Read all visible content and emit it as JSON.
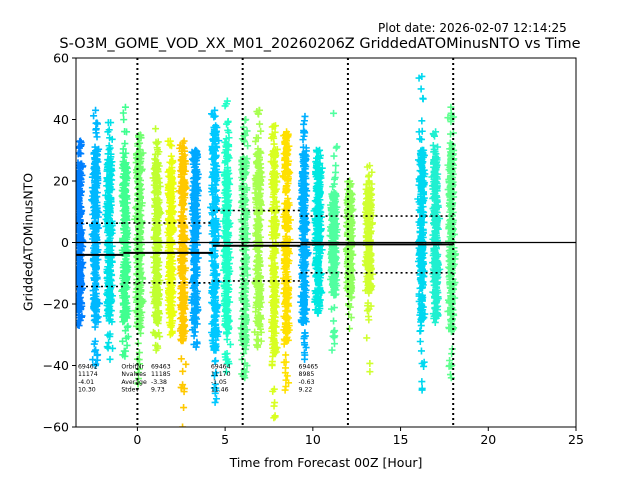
{
  "header": {
    "plot_date": "Plot date: 2026-02-07 12:14:25"
  },
  "chart_data": {
    "type": "scatter",
    "title": "S-O3M_GOME_VOD_XX_M01_20260206Z GriddedATOMinusNTO vs Time",
    "xlabel": "Time from Forecast 00Z [Hour]",
    "ylabel": "GriddedATOMinusNTO",
    "xlim": [
      -3.5,
      25
    ],
    "ylim": [
      -60,
      60
    ],
    "xticks": [
      0,
      5,
      10,
      15,
      20,
      25
    ],
    "yticks": [
      -60,
      -40,
      -20,
      0,
      20,
      40,
      60
    ],
    "grid": false,
    "marker": "+",
    "window_boundaries_hours": [
      0,
      6,
      12,
      18
    ],
    "zero_line": 0,
    "orbit_clusters": [
      {
        "t_center": -3.3,
        "y_low": -22,
        "y_high": 26,
        "y_min_outlier": -27,
        "y_max_outlier": 33,
        "color": "#0080ff"
      },
      {
        "t_center": -2.4,
        "y_low": -26,
        "y_high": 30,
        "y_min_outlier": -40,
        "y_max_outlier": 43,
        "color": "#00b8ff"
      },
      {
        "t_center": -1.6,
        "y_low": -24,
        "y_high": 28,
        "y_min_outlier": -38,
        "y_max_outlier": 39,
        "color": "#00e0e8"
      },
      {
        "t_center": -0.7,
        "y_low": -26,
        "y_high": 26,
        "y_min_outlier": -37,
        "y_max_outlier": 44,
        "color": "#40ff90"
      },
      {
        "t_center": 0.1,
        "y_low": -28,
        "y_high": 30,
        "y_min_outlier": -46,
        "y_max_outlier": 35,
        "color": "#70ff70"
      },
      {
        "t_center": 1.1,
        "y_low": -26,
        "y_high": 26,
        "y_min_outlier": -35,
        "y_max_outlier": 37,
        "color": "#c0ff30"
      },
      {
        "t_center": 1.9,
        "y_low": -24,
        "y_high": 24,
        "y_min_outlier": -30,
        "y_max_outlier": 33,
        "color": "#e8ff10"
      },
      {
        "t_center": 2.6,
        "y_low": -32,
        "y_high": 28,
        "y_min_outlier": -60,
        "y_max_outlier": 33,
        "color": "#ffc800"
      },
      {
        "t_center": 3.3,
        "y_low": -26,
        "y_high": 28,
        "y_min_outlier": -34,
        "y_max_outlier": 30,
        "color": "#00a8ff"
      },
      {
        "t_center": 4.4,
        "y_low": -36,
        "y_high": 36,
        "y_min_outlier": -52,
        "y_max_outlier": 43,
        "color": "#00c8ff"
      },
      {
        "t_center": 5.1,
        "y_low": -30,
        "y_high": 32,
        "y_min_outlier": -42,
        "y_max_outlier": 46,
        "color": "#20ffc8"
      },
      {
        "t_center": 6.1,
        "y_low": -34,
        "y_high": 28,
        "y_min_outlier": -44,
        "y_max_outlier": 40,
        "color": "#60ff90"
      },
      {
        "t_center": 6.9,
        "y_low": -28,
        "y_high": 30,
        "y_min_outlier": -34,
        "y_max_outlier": 43,
        "color": "#a8ff50"
      },
      {
        "t_center": 7.8,
        "y_low": -36,
        "y_high": 30,
        "y_min_outlier": -57,
        "y_max_outlier": 38,
        "color": "#d8ff20"
      },
      {
        "t_center": 8.5,
        "y_low": -32,
        "y_high": 34,
        "y_min_outlier": -48,
        "y_max_outlier": 36,
        "color": "#ffe000"
      },
      {
        "t_center": 9.5,
        "y_low": -26,
        "y_high": 30,
        "y_min_outlier": -38,
        "y_max_outlier": 41,
        "color": "#00b0ff"
      },
      {
        "t_center": 10.3,
        "y_low": -20,
        "y_high": 26,
        "y_min_outlier": -23,
        "y_max_outlier": 30,
        "color": "#00e8e0"
      },
      {
        "t_center": 11.2,
        "y_low": -18,
        "y_high": 16,
        "y_min_outlier": -35,
        "y_max_outlier": 42,
        "color": "#50ffa0"
      },
      {
        "t_center": 12.1,
        "y_low": -16,
        "y_high": 16,
        "y_min_outlier": -28,
        "y_max_outlier": 20,
        "color": "#90ff60"
      },
      {
        "t_center": 13.2,
        "y_low": -16,
        "y_high": 18,
        "y_min_outlier": -42,
        "y_max_outlier": 25,
        "color": "#d0ff30"
      },
      {
        "t_center": 16.2,
        "y_low": -26,
        "y_high": 30,
        "y_min_outlier": -48,
        "y_max_outlier": 54,
        "color": "#00d8f0"
      },
      {
        "t_center": 17.0,
        "y_low": -22,
        "y_high": 28,
        "y_min_outlier": -26,
        "y_max_outlier": 36,
        "color": "#20f0d0"
      },
      {
        "t_center": 17.9,
        "y_low": -28,
        "y_high": 32,
        "y_min_outlier": -44,
        "y_max_outlier": 44,
        "color": "#60ff90"
      }
    ],
    "window_stats": [
      {
        "t_start": -3.5,
        "t_end": -0.8,
        "mean": -4.01,
        "stdev": 10.3
      },
      {
        "t_start": -0.8,
        "t_end": 4.3,
        "mean": -3.38,
        "stdev": 9.73
      },
      {
        "t_start": 4.3,
        "t_end": 9.3,
        "mean": -1.05,
        "stdev": 11.46
      },
      {
        "t_start": 9.3,
        "t_end": 18.0,
        "mean": -0.63,
        "stdev": 9.22
      }
    ],
    "annotations": [
      {
        "t": -3.3,
        "lines": [
          "69462",
          "11174",
          "-4.01",
          "10.30"
        ]
      },
      {
        "t": -0.8,
        "labels": [
          "OrbitNr",
          "Nvalues",
          "Average",
          "Stdev"
        ],
        "lines": [
          "69463",
          "11185",
          "-3.38",
          "9.73"
        ]
      },
      {
        "t": 4.3,
        "lines": [
          "69464",
          "11170",
          "-1.05",
          "11.46"
        ]
      },
      {
        "t": 9.3,
        "lines": [
          "69465",
          "8985",
          "-0.63",
          "9.22"
        ]
      }
    ],
    "annotation_y": -41
  }
}
